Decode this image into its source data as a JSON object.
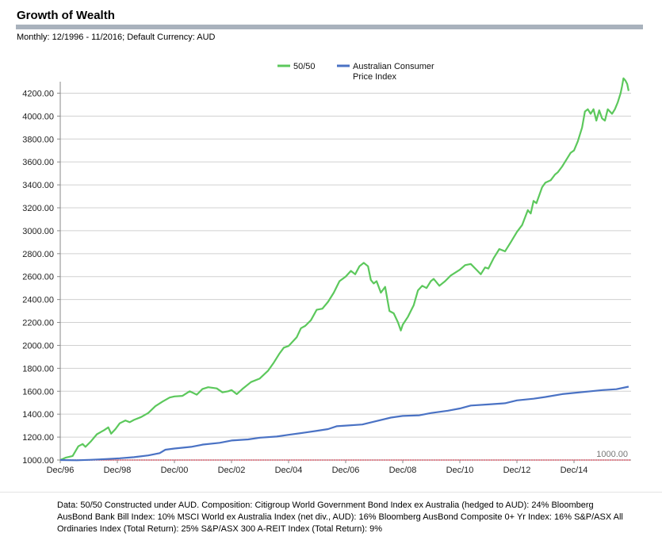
{
  "header": {
    "title": "Growth of Wealth",
    "subtitle": "Monthly: 12/1996 - 11/2016; Default Currency: AUD"
  },
  "footnote": "Data: 50/50 Constructed under AUD. Composition: Citigroup World Government Bond Index ex Australia (hedged to AUD): 24% Bloomberg AusBond Bank Bill Index: 10% MSCI World ex Australia Index (net div., AUD): 16% Bloomberg AusBond Composite 0+ Yr Index: 16% S&P/ASX All Ordinaries Index (Total Return): 25% S&P/ASX 300 A-REIT Index (Total Return): 9%",
  "colors": {
    "green": "#5cc85c",
    "blue": "#4a72c4",
    "baseline": "#e06070",
    "grid": "#d0d0d0",
    "axis": "#888888"
  },
  "chart_data": {
    "type": "line",
    "x_range": [
      1996.917,
      2016.833
    ],
    "xlim": [
      1996.917,
      2016.917
    ],
    "ylim": [
      1000,
      4300
    ],
    "grid": true,
    "legend_position": "top-center",
    "yticks": [
      "1000.00",
      "1200.00",
      "1400.00",
      "1600.00",
      "1800.00",
      "2000.00",
      "2200.00",
      "2400.00",
      "2600.00",
      "2800.00",
      "3000.00",
      "3200.00",
      "3400.00",
      "3600.00",
      "3800.00",
      "4000.00",
      "4200.00"
    ],
    "ytick_values": [
      1000,
      1200,
      1400,
      1600,
      1800,
      2000,
      2200,
      2400,
      2600,
      2800,
      3000,
      3200,
      3400,
      3600,
      3800,
      4000,
      4200
    ],
    "xticks": [
      "Dec/96",
      "Dec/98",
      "Dec/00",
      "Dec/02",
      "Dec/04",
      "Dec/06",
      "Dec/08",
      "Dec/10",
      "Dec/12",
      "Dec/14"
    ],
    "xtick_values": [
      1996.917,
      1998.917,
      2000.917,
      2002.917,
      2004.917,
      2006.917,
      2008.917,
      2010.917,
      2012.917,
      2014.917
    ],
    "reference_line": {
      "value": 1000,
      "label": "1000.00"
    },
    "series": [
      {
        "name": "50/50",
        "color": "#5cc85c",
        "points": [
          [
            1996.917,
            1000
          ],
          [
            1997.1,
            1020
          ],
          [
            1997.35,
            1035
          ],
          [
            1997.55,
            1120
          ],
          [
            1997.7,
            1140
          ],
          [
            1997.8,
            1115
          ],
          [
            1998.0,
            1165
          ],
          [
            1998.2,
            1225
          ],
          [
            1998.45,
            1260
          ],
          [
            1998.6,
            1285
          ],
          [
            1998.7,
            1230
          ],
          [
            1998.85,
            1270
          ],
          [
            1999.0,
            1320
          ],
          [
            1999.2,
            1345
          ],
          [
            1999.35,
            1330
          ],
          [
            1999.5,
            1350
          ],
          [
            1999.75,
            1375
          ],
          [
            2000.0,
            1410
          ],
          [
            2000.25,
            1470
          ],
          [
            2000.5,
            1510
          ],
          [
            2000.75,
            1545
          ],
          [
            2000.917,
            1555
          ],
          [
            2001.2,
            1560
          ],
          [
            2001.45,
            1600
          ],
          [
            2001.7,
            1570
          ],
          [
            2001.9,
            1620
          ],
          [
            2002.1,
            1635
          ],
          [
            2002.4,
            1625
          ],
          [
            2002.6,
            1590
          ],
          [
            2002.8,
            1600
          ],
          [
            2002.917,
            1610
          ],
          [
            2003.1,
            1575
          ],
          [
            2003.3,
            1620
          ],
          [
            2003.6,
            1680
          ],
          [
            2003.9,
            1710
          ],
          [
            2004.2,
            1780
          ],
          [
            2004.4,
            1850
          ],
          [
            2004.6,
            1930
          ],
          [
            2004.75,
            1980
          ],
          [
            2004.917,
            1995
          ],
          [
            2005.2,
            2070
          ],
          [
            2005.35,
            2150
          ],
          [
            2005.5,
            2170
          ],
          [
            2005.7,
            2220
          ],
          [
            2005.9,
            2310
          ],
          [
            2006.1,
            2320
          ],
          [
            2006.3,
            2380
          ],
          [
            2006.5,
            2460
          ],
          [
            2006.7,
            2560
          ],
          [
            2006.917,
            2600
          ],
          [
            2007.1,
            2650
          ],
          [
            2007.25,
            2620
          ],
          [
            2007.4,
            2690
          ],
          [
            2007.55,
            2720
          ],
          [
            2007.7,
            2690
          ],
          [
            2007.8,
            2570
          ],
          [
            2007.9,
            2540
          ],
          [
            2008.0,
            2560
          ],
          [
            2008.15,
            2460
          ],
          [
            2008.3,
            2510
          ],
          [
            2008.45,
            2300
          ],
          [
            2008.6,
            2280
          ],
          [
            2008.75,
            2200
          ],
          [
            2008.85,
            2130
          ],
          [
            2008.917,
            2180
          ],
          [
            2009.1,
            2250
          ],
          [
            2009.3,
            2350
          ],
          [
            2009.45,
            2480
          ],
          [
            2009.6,
            2520
          ],
          [
            2009.75,
            2500
          ],
          [
            2009.9,
            2560
          ],
          [
            2010.0,
            2580
          ],
          [
            2010.2,
            2520
          ],
          [
            2010.4,
            2560
          ],
          [
            2010.6,
            2610
          ],
          [
            2010.917,
            2660
          ],
          [
            2011.1,
            2700
          ],
          [
            2011.3,
            2710
          ],
          [
            2011.5,
            2660
          ],
          [
            2011.65,
            2620
          ],
          [
            2011.8,
            2680
          ],
          [
            2011.917,
            2670
          ],
          [
            2012.1,
            2760
          ],
          [
            2012.3,
            2840
          ],
          [
            2012.5,
            2820
          ],
          [
            2012.7,
            2900
          ],
          [
            2012.917,
            2990
          ],
          [
            2013.1,
            3050
          ],
          [
            2013.3,
            3180
          ],
          [
            2013.4,
            3150
          ],
          [
            2013.5,
            3260
          ],
          [
            2013.6,
            3240
          ],
          [
            2013.8,
            3380
          ],
          [
            2013.917,
            3420
          ],
          [
            2014.1,
            3440
          ],
          [
            2014.25,
            3490
          ],
          [
            2014.35,
            3510
          ],
          [
            2014.5,
            3560
          ],
          [
            2014.65,
            3620
          ],
          [
            2014.8,
            3680
          ],
          [
            2014.917,
            3700
          ],
          [
            2015.05,
            3780
          ],
          [
            2015.2,
            3900
          ],
          [
            2015.3,
            4040
          ],
          [
            2015.4,
            4060
          ],
          [
            2015.5,
            4020
          ],
          [
            2015.6,
            4060
          ],
          [
            2015.7,
            3960
          ],
          [
            2015.8,
            4050
          ],
          [
            2015.9,
            3980
          ],
          [
            2016.0,
            3960
          ],
          [
            2016.1,
            4060
          ],
          [
            2016.25,
            4020
          ],
          [
            2016.35,
            4060
          ],
          [
            2016.45,
            4120
          ],
          [
            2016.55,
            4200
          ],
          [
            2016.6,
            4260
          ],
          [
            2016.65,
            4330
          ],
          [
            2016.72,
            4310
          ],
          [
            2016.78,
            4280
          ],
          [
            2016.83,
            4220
          ]
        ]
      },
      {
        "name": "Australian Consumer Price Index",
        "color": "#4a72c4",
        "points": [
          [
            1996.917,
            1000
          ],
          [
            1997.5,
            998
          ],
          [
            1998.0,
            1002
          ],
          [
            1998.5,
            1008
          ],
          [
            1999.0,
            1015
          ],
          [
            1999.5,
            1025
          ],
          [
            2000.0,
            1040
          ],
          [
            2000.4,
            1060
          ],
          [
            2000.6,
            1090
          ],
          [
            2000.917,
            1100
          ],
          [
            2001.5,
            1115
          ],
          [
            2001.917,
            1135
          ],
          [
            2002.5,
            1150
          ],
          [
            2002.917,
            1170
          ],
          [
            2003.5,
            1180
          ],
          [
            2003.917,
            1195
          ],
          [
            2004.5,
            1205
          ],
          [
            2004.917,
            1220
          ],
          [
            2005.5,
            1240
          ],
          [
            2005.917,
            1255
          ],
          [
            2006.3,
            1270
          ],
          [
            2006.6,
            1295
          ],
          [
            2006.917,
            1300
          ],
          [
            2007.5,
            1310
          ],
          [
            2007.917,
            1335
          ],
          [
            2008.5,
            1370
          ],
          [
            2008.917,
            1385
          ],
          [
            2009.5,
            1390
          ],
          [
            2009.917,
            1410
          ],
          [
            2010.5,
            1430
          ],
          [
            2010.917,
            1450
          ],
          [
            2011.3,
            1475
          ],
          [
            2011.917,
            1485
          ],
          [
            2012.5,
            1495
          ],
          [
            2012.917,
            1520
          ],
          [
            2013.5,
            1535
          ],
          [
            2013.917,
            1550
          ],
          [
            2014.5,
            1575
          ],
          [
            2014.917,
            1585
          ],
          [
            2015.5,
            1600
          ],
          [
            2015.917,
            1610
          ],
          [
            2016.4,
            1618
          ],
          [
            2016.83,
            1640
          ]
        ]
      }
    ]
  }
}
